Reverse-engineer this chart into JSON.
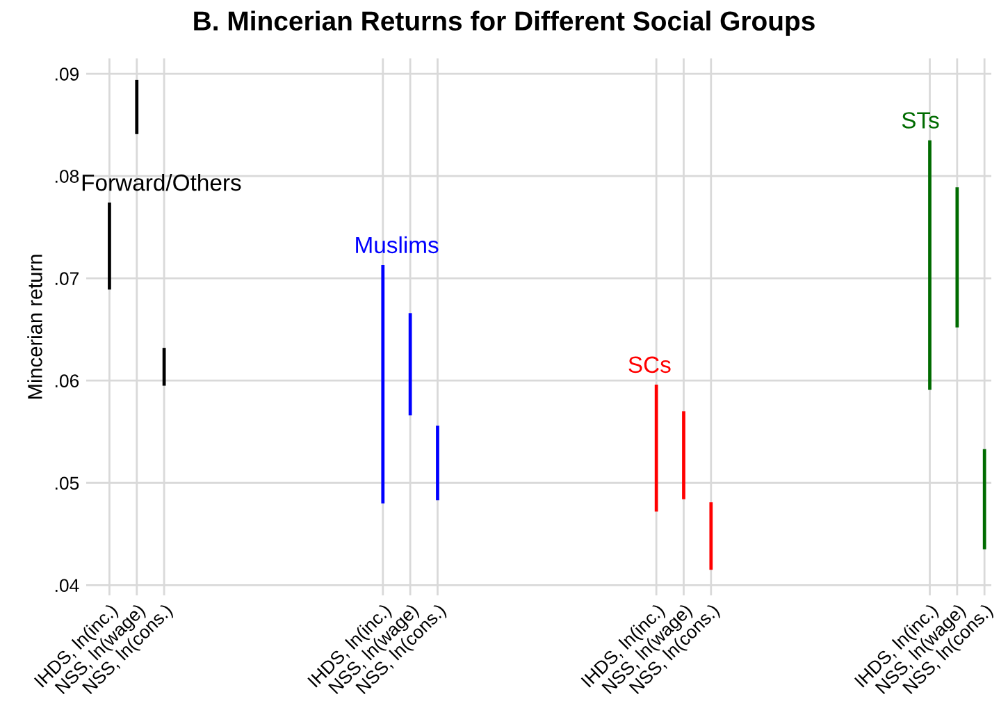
{
  "chart_data": {
    "type": "bar",
    "title": "B. Mincerian Returns for Different Social Groups",
    "ylabel": "Mincerian return",
    "categories": [
      "IHDS, ln(inc.)",
      "NSS, ln(wage)",
      "NSS, ln(cons.)",
      null,
      null,
      null,
      null,
      null,
      null,
      null,
      "IHDS, ln(inc.)",
      "NSS, ln(wage)",
      "NSS, ln(cons.)",
      null,
      null,
      null,
      null,
      null,
      null,
      null,
      "IHDS, ln(inc.)",
      "NSS, ln(wage)",
      "NSS, ln(cons.)",
      null,
      null,
      null,
      null,
      null,
      null,
      null,
      "IHDS, ln(inc.)",
      "NSS, ln(wage)",
      "NSS, ln(cons.)"
    ],
    "series": [
      {
        "name": "Forward/Others",
        "color": "#000000",
        "values": [
          0.0085,
          0.0053,
          0.0037,
          null,
          null,
          null,
          null,
          null,
          null,
          null,
          null,
          null,
          null,
          null,
          null,
          null,
          null,
          null,
          null,
          null,
          null,
          null,
          null,
          null,
          null,
          null,
          null,
          null,
          null,
          null,
          null,
          null,
          null
        ],
        "base": [
          0.0689,
          0.0841,
          0.0595,
          null,
          null,
          null,
          null,
          null,
          null,
          null,
          null,
          null,
          null,
          null,
          null,
          null,
          null,
          null,
          null,
          null,
          null,
          null,
          null,
          null,
          null,
          null,
          null,
          null,
          null,
          null,
          null,
          null,
          null
        ]
      },
      {
        "name": "Muslims",
        "color": "#0000ff",
        "values": [
          null,
          null,
          null,
          null,
          null,
          null,
          null,
          null,
          null,
          null,
          0.0233,
          0.01,
          0.0073,
          null,
          null,
          null,
          null,
          null,
          null,
          null,
          null,
          null,
          null,
          null,
          null,
          null,
          null,
          null,
          null,
          null,
          null,
          null,
          null
        ],
        "base": [
          null,
          null,
          null,
          null,
          null,
          null,
          null,
          null,
          null,
          null,
          0.048,
          0.0566,
          0.0483,
          null,
          null,
          null,
          null,
          null,
          null,
          null,
          null,
          null,
          null,
          null,
          null,
          null,
          null,
          null,
          null,
          null,
          null,
          null,
          null
        ]
      },
      {
        "name": "SCs",
        "color": "#ff0000",
        "values": [
          null,
          null,
          null,
          null,
          null,
          null,
          null,
          null,
          null,
          null,
          null,
          null,
          null,
          null,
          null,
          null,
          null,
          null,
          null,
          null,
          0.0124,
          0.0086,
          0.0066,
          null,
          null,
          null,
          null,
          null,
          null,
          null,
          null,
          null,
          null
        ],
        "base": [
          null,
          null,
          null,
          null,
          null,
          null,
          null,
          null,
          null,
          null,
          null,
          null,
          null,
          null,
          null,
          null,
          null,
          null,
          null,
          null,
          0.0472,
          0.0484,
          0.0415,
          null,
          null,
          null,
          null,
          null,
          null,
          null,
          null,
          null,
          null
        ]
      },
      {
        "name": "STs",
        "color": "#006b00",
        "values": [
          null,
          null,
          null,
          null,
          null,
          null,
          null,
          null,
          null,
          null,
          null,
          null,
          null,
          null,
          null,
          null,
          null,
          null,
          null,
          null,
          null,
          null,
          null,
          null,
          null,
          null,
          null,
          null,
          null,
          null,
          0.0244,
          0.0137,
          0.0098
        ],
        "base": [
          null,
          null,
          null,
          null,
          null,
          null,
          null,
          null,
          null,
          null,
          null,
          null,
          null,
          null,
          null,
          null,
          null,
          null,
          null,
          null,
          null,
          null,
          null,
          null,
          null,
          null,
          null,
          null,
          null,
          null,
          0.0591,
          0.0652,
          0.0435
        ]
      }
    ],
    "ylim": [
      0.039,
      0.0915
    ],
    "yticks": [
      {
        "value": 0.04,
        "label": ".04"
      },
      {
        "value": 0.05,
        "label": ".05"
      },
      {
        "value": 0.06,
        "label": ".06"
      },
      {
        "value": 0.07,
        "label": ".07"
      },
      {
        "value": 0.08,
        "label": ".08"
      },
      {
        "value": 0.09,
        "label": ".09"
      }
    ],
    "grid": true,
    "legend": false
  }
}
